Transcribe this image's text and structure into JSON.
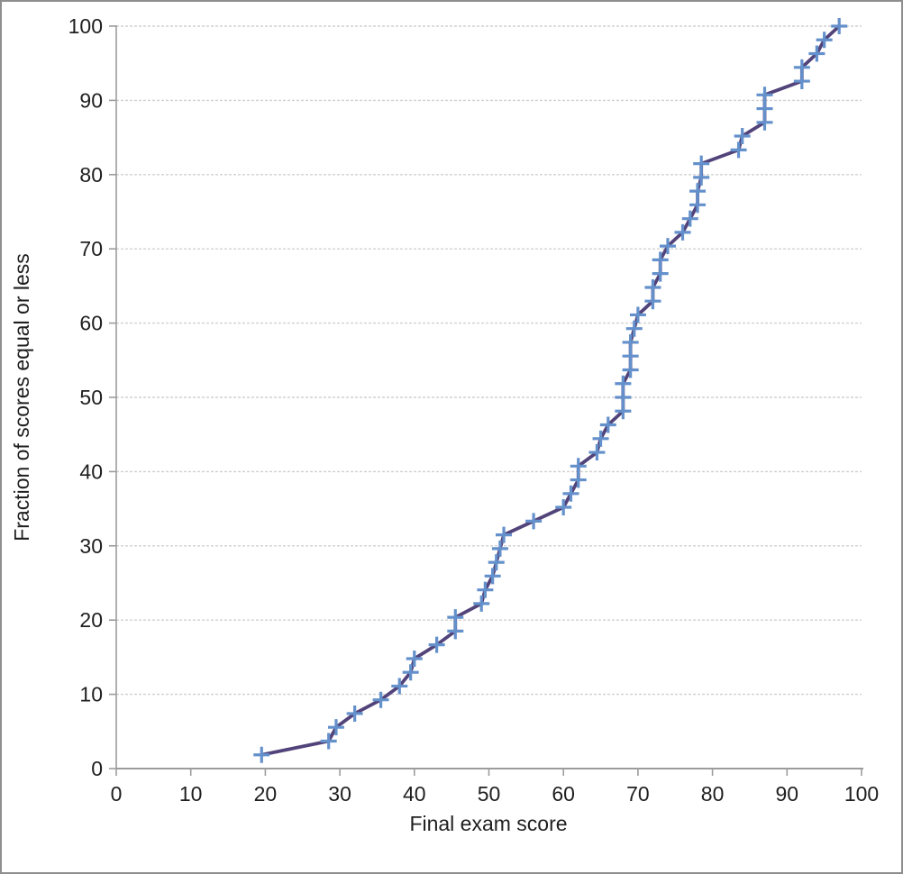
{
  "chart_data": {
    "type": "line",
    "title": "",
    "xlabel": "Final exam score",
    "ylabel": "Fraction of scores equal or less",
    "xlim": [
      0,
      100
    ],
    "ylim": [
      0,
      100
    ],
    "x_ticks": [
      0,
      10,
      20,
      30,
      40,
      50,
      60,
      70,
      80,
      90,
      100
    ],
    "y_ticks": [
      0,
      10,
      20,
      30,
      40,
      50,
      60,
      70,
      80,
      90,
      100
    ],
    "grid": "horizontal-dashed",
    "legend": "none",
    "marker_style": "plus",
    "series": [
      {
        "name": "Fraction of scores equal or less",
        "x": [
          19.5,
          28.5,
          29.5,
          32,
          35.5,
          38,
          39.5,
          40,
          43,
          45.5,
          45.5,
          49,
          49.5,
          50.5,
          51,
          51.5,
          52,
          56,
          60,
          61,
          62,
          62,
          64.5,
          65,
          66,
          68,
          68,
          68,
          69,
          69,
          69,
          69.5,
          70,
          72,
          72,
          73,
          73,
          74,
          76,
          77,
          78,
          78,
          78.5,
          78.5,
          83.5,
          84,
          87,
          87,
          87,
          92,
          92,
          94,
          95,
          97
        ],
        "y": [
          1.85,
          3.7,
          5.56,
          7.41,
          9.26,
          11.11,
          12.96,
          14.81,
          16.67,
          18.52,
          20.37,
          22.22,
          24.07,
          25.93,
          27.78,
          29.63,
          31.48,
          33.33,
          35.19,
          37.04,
          38.89,
          40.74,
          42.59,
          44.44,
          46.3,
          48.15,
          50,
          51.85,
          53.7,
          55.56,
          57.41,
          59.26,
          61.11,
          62.96,
          64.81,
          66.67,
          68.52,
          70.37,
          72.22,
          74.07,
          75.93,
          77.78,
          79.63,
          81.48,
          83.33,
          85.19,
          87.04,
          88.89,
          90.74,
          92.59,
          94.44,
          96.3,
          98.15,
          100
        ]
      }
    ]
  },
  "colors": {
    "line": "#52447a",
    "marker": "#6490cb",
    "gridline": "#d0d0d0",
    "axis": "#9c9c9c",
    "text": "#1f1f1f",
    "frame_border": "#8e8e8e",
    "background": "#ffffff"
  }
}
